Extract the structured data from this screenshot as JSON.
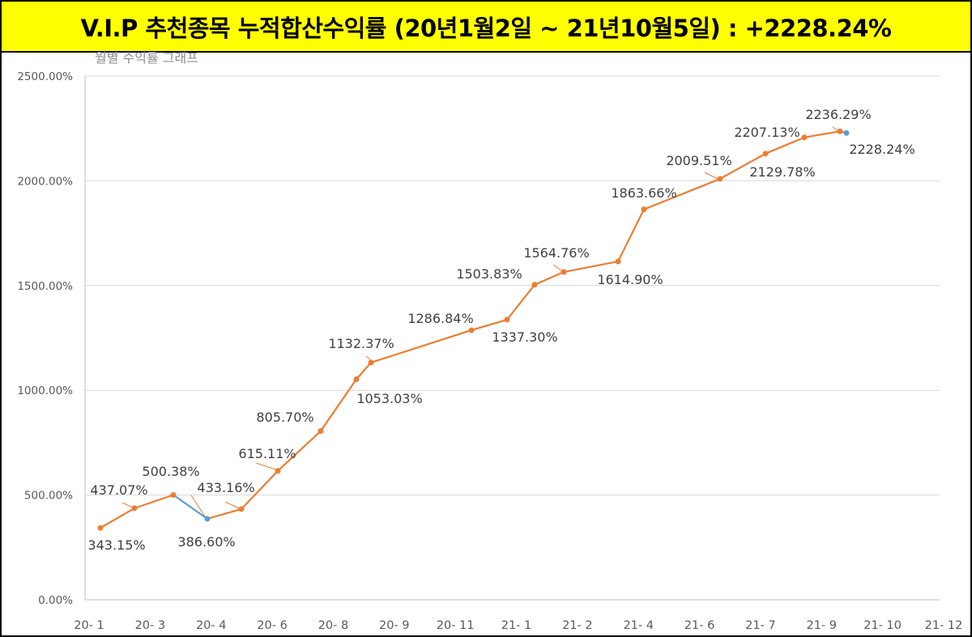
{
  "header": {
    "title": "V.I.P 추천종목 누적합산수익률 (20년1월2일 ~ 21년10월5일) : +2228.24%"
  },
  "colors": {
    "header_bg": "#ffff00",
    "series_line": "#ed7d31",
    "highlight": "#5b9bd5",
    "gridline": "#d9d9d9",
    "axis": "#bfbfbf"
  },
  "chart_data": {
    "type": "line",
    "title": "월별 수익률 그래프",
    "xlabel": "",
    "ylabel": "",
    "ylim": [
      0,
      2500
    ],
    "y_ticks": [
      "0.00%",
      "500.00%",
      "1000.00%",
      "1500.00%",
      "2000.00%",
      "2500.00%"
    ],
    "x_ticks": [
      "20- 1",
      "20- 3",
      "20- 4",
      "20- 6",
      "20- 8",
      "20- 9",
      "20- 11",
      "21- 1",
      "21- 2",
      "21- 4",
      "21- 6",
      "21- 7",
      "21- 9",
      "21- 10",
      "21- 12"
    ],
    "grid": true,
    "points": [
      {
        "label": "343.15%",
        "y": 343.15
      },
      {
        "label": "437.07%",
        "y": 437.07
      },
      {
        "label": "500.38%",
        "y": 500.38
      },
      {
        "label": "386.60%",
        "y": 386.6
      },
      {
        "label": "433.16%",
        "y": 433.16
      },
      {
        "label": "615.11%",
        "y": 615.11
      },
      {
        "label": "805.70%",
        "y": 805.7
      },
      {
        "label": "1053.03%",
        "y": 1053.03
      },
      {
        "label": "1132.37%",
        "y": 1132.37
      },
      {
        "label": "1286.84%",
        "y": 1286.84
      },
      {
        "label": "1337.30%",
        "y": 1337.3
      },
      {
        "label": "1503.83%",
        "y": 1503.83
      },
      {
        "label": "1564.76%",
        "y": 1564.76
      },
      {
        "label": "1614.90%",
        "y": 1614.9
      },
      {
        "label": "1863.66%",
        "y": 1863.66
      },
      {
        "label": "2009.51%",
        "y": 2009.51
      },
      {
        "label": "2129.78%",
        "y": 2129.78
      },
      {
        "label": "2207.13%",
        "y": 2207.13
      },
      {
        "label": "2236.29%",
        "y": 2236.29
      },
      {
        "label": "2228.24%",
        "y": 2228.24
      }
    ]
  }
}
